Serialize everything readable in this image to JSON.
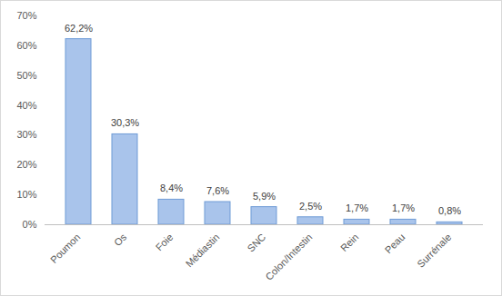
{
  "chart_data": {
    "type": "bar",
    "categories": [
      "Poumon",
      "Os",
      "Foie",
      "Médiastin",
      "SNC",
      "Colon/Intestin",
      "Rein",
      "Peau",
      "Surrénale"
    ],
    "values": [
      62.2,
      30.3,
      8.4,
      7.6,
      5.9,
      2.5,
      1.7,
      1.7,
      0.8
    ],
    "value_labels": [
      "62,2%",
      "30,3%",
      "8,4%",
      "7,6%",
      "5,9%",
      "2,5%",
      "1,7%",
      "1,7%",
      "0,8%"
    ],
    "color": "#a9c4eb",
    "ylim": [
      0,
      70
    ],
    "yticks": [
      {
        "value": 0,
        "label": "0%"
      },
      {
        "value": 10,
        "label": "10%"
      },
      {
        "value": 20,
        "label": "20%"
      },
      {
        "value": 30,
        "label": "30%"
      },
      {
        "value": 40,
        "label": "40%"
      },
      {
        "value": 50,
        "label": "50%"
      },
      {
        "value": 60,
        "label": "60%"
      },
      {
        "value": 70,
        "label": "70%"
      }
    ],
    "grid": false,
    "data_labels": true
  }
}
